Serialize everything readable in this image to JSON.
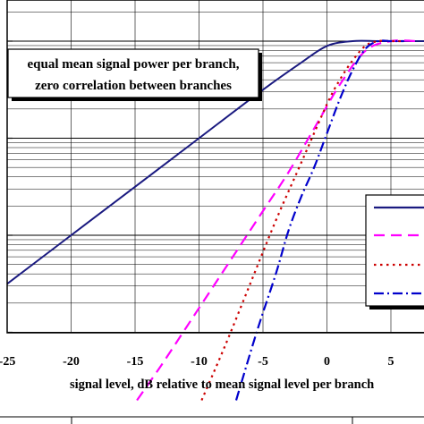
{
  "chart_data": {
    "type": "line",
    "title": "",
    "xlabel": "signal level, dB relative to mean signal level per branch",
    "ylabel": "",
    "xlim": [
      -25,
      10
    ],
    "ylog_decades": [
      -4,
      0
    ],
    "x_ticks": [
      "-25",
      "-20",
      "-15",
      "-10",
      "-5",
      "0",
      "5"
    ],
    "x_tick_values": [
      -25,
      -20,
      -15,
      -10,
      -5,
      0,
      5
    ],
    "grid": true,
    "annotation": [
      "equal mean signal power per branch,",
      "zero correlation between branches"
    ],
    "legend_placement": "right",
    "series": [
      {
        "style": "solid",
        "color": "#1a1a80",
        "x": [
          -25,
          -20,
          -15,
          -10,
          -5,
          -2,
          0,
          2,
          4,
          6,
          8,
          10
        ],
        "y": [
          -2.5,
          -2.0,
          -1.5,
          -1.0,
          -0.5,
          -0.22,
          -0.05,
          0.0,
          0.0,
          0.0,
          0.0,
          0.0
        ]
      },
      {
        "style": "long-dash",
        "color": "#ff00ff",
        "x": [
          -14.85,
          -13,
          -11,
          -9,
          -7,
          -5,
          -3,
          -1,
          1,
          3,
          5,
          7
        ],
        "y": [
          -3.7,
          -3.35,
          -2.95,
          -2.55,
          -2.15,
          -1.75,
          -1.35,
          -0.9,
          -0.45,
          -0.1,
          0.0,
          0.0
        ]
      },
      {
        "style": "dotted",
        "color": "#cc0000",
        "x": [
          -9.8,
          -8,
          -6,
          -4,
          -2,
          0,
          1,
          2,
          3,
          4,
          5,
          6
        ],
        "y": [
          -3.7,
          -3.15,
          -2.5,
          -1.85,
          -1.25,
          -0.65,
          -0.4,
          -0.2,
          -0.05,
          0.0,
          0.0,
          0.0
        ]
      },
      {
        "style": "dash-dot",
        "color": "#0000cc",
        "x": [
          -7.1,
          -5.5,
          -4,
          -3,
          -2,
          -1,
          0,
          1,
          2,
          3,
          4,
          5,
          6
        ],
        "y": [
          -3.7,
          -3.0,
          -2.4,
          -1.95,
          -1.6,
          -1.3,
          -0.95,
          -0.6,
          -0.3,
          -0.08,
          0.0,
          0.0,
          0.0
        ]
      }
    ]
  }
}
